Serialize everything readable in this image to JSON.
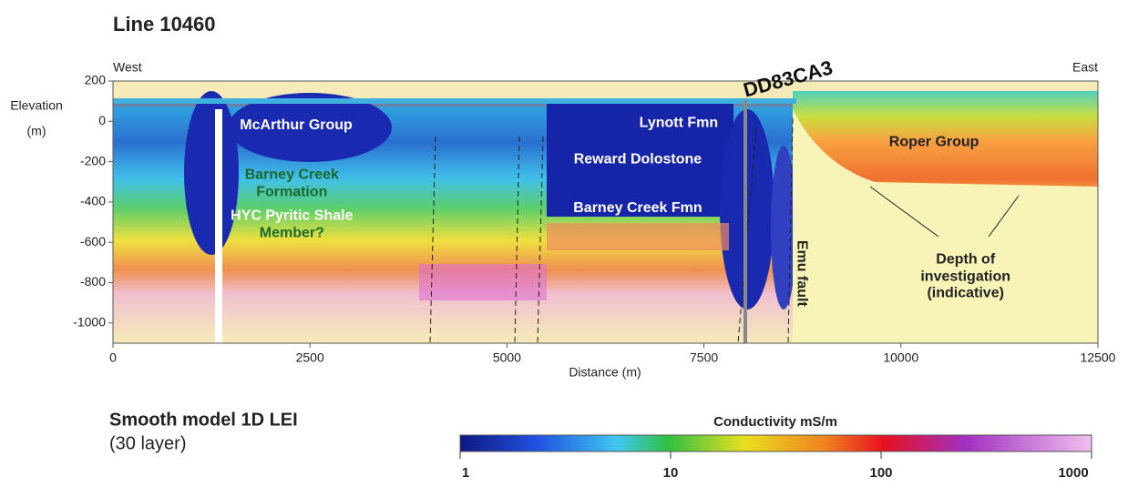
{
  "chart_data": {
    "type": "section",
    "title": "Line 10460",
    "subtitle": "Smooth model 1D LEI",
    "subtitle2": "(30 layer)",
    "xlabel": "Distance (m)",
    "ylabel": [
      "Elevation",
      "(m)"
    ],
    "left_label": "West",
    "right_label": "East",
    "xlim": [
      0,
      12500
    ],
    "xticks": [
      0,
      2500,
      5000,
      7500,
      10000,
      12500
    ],
    "ylim": [
      -1100,
      200
    ],
    "yticks": [
      200,
      0,
      -200,
      -400,
      -600,
      -800,
      -1000
    ],
    "annotations": [
      {
        "text": "McArthur Group",
        "x": 2325,
        "y": -20,
        "color": "#ffffff"
      },
      {
        "text": "Barney Creek",
        "x": 2270,
        "y": -266,
        "color": "#1a6a2a"
      },
      {
        "text": "Formation",
        "x": 2270,
        "y": -352,
        "color": "#1a6a2a"
      },
      {
        "text": "HYC Pyritic Shale",
        "x": 2270,
        "y": -470,
        "color": "#ffffff"
      },
      {
        "text": "Member?",
        "x": 2270,
        "y": -555,
        "color": "#1a6a2a"
      },
      {
        "text": "Lynott Fmn",
        "x": 7180,
        "y": -10,
        "color": "#ffffff"
      },
      {
        "text": "Reward Dolostone",
        "x": 6660,
        "y": -190,
        "color": "#ffffff"
      },
      {
        "text": "Barney Creek Fmn",
        "x": 6660,
        "y": -430,
        "color": "#ffffff"
      },
      {
        "text": "DD83CA3",
        "x": 8570,
        "y": 204,
        "color": "#111111",
        "rotate": -15
      },
      {
        "text": "Roper Group",
        "x": 10420,
        "y": -103,
        "color": "#222222"
      },
      {
        "text": "Emu fault",
        "x": 8740,
        "y": -754,
        "color": "#222222",
        "rotate": 90
      },
      {
        "text": "Depth of",
        "x": 10820,
        "y": -686,
        "color": "#222222"
      },
      {
        "text": "investigation",
        "x": 10820,
        "y": -772,
        "color": "#222222"
      },
      {
        "text": "(indicative)",
        "x": 10820,
        "y": -854,
        "color": "#222222"
      }
    ],
    "colorbar": {
      "label": "Conductivity mS/m",
      "lim": [
        1,
        1000
      ],
      "log": true,
      "ticks": [
        1,
        10,
        100,
        1000
      ]
    }
  }
}
